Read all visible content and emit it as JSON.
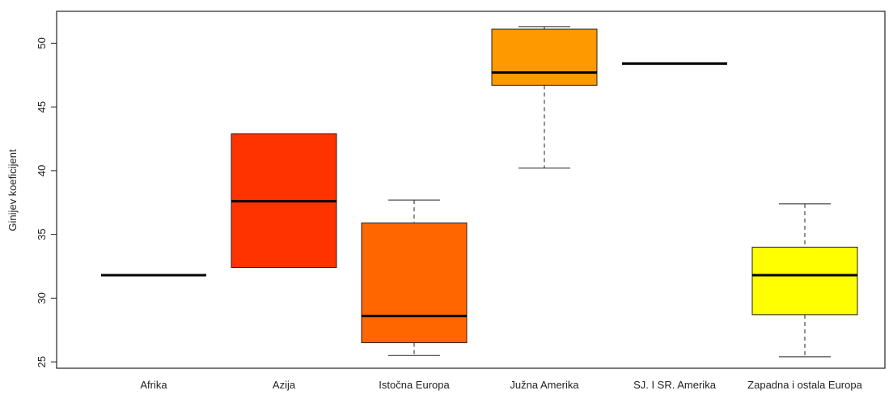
{
  "chart_data": {
    "type": "box",
    "ylabel": "Ginijev koeficijent",
    "xlabel": "",
    "title": "",
    "ylim": [
      24.5,
      52.5
    ],
    "yticks": [
      25,
      30,
      35,
      40,
      45,
      50
    ],
    "grid": false,
    "categories": [
      "Afrika",
      "Azija",
      "Istočna Europa",
      "Južna Amerika",
      "SJ. I SR. Amerika",
      "Zapadna i ostala Europa"
    ],
    "boxes": [
      {
        "category": "Afrika",
        "min": 31.8,
        "q1": 31.8,
        "median": 31.8,
        "q3": 31.8,
        "max": 31.8,
        "color": "#ffffff"
      },
      {
        "category": "Azija",
        "min": 32.4,
        "q1": 32.4,
        "median": 37.6,
        "q3": 42.9,
        "max": 42.9,
        "color": "#ff3300"
      },
      {
        "category": "Istočna Europa",
        "min": 25.5,
        "q1": 26.5,
        "median": 28.6,
        "q3": 35.9,
        "max": 37.7,
        "color": "#ff6600"
      },
      {
        "category": "Južna Amerika",
        "min": 40.2,
        "q1": 46.7,
        "median": 47.7,
        "q3": 51.1,
        "max": 51.3,
        "color": "#ff9900"
      },
      {
        "category": "SJ. I SR. Amerika",
        "min": 48.4,
        "q1": 48.4,
        "median": 48.4,
        "q3": 48.4,
        "max": 48.4,
        "color": "#ffcc00"
      },
      {
        "category": "Zapadna i ostala Europa",
        "min": 25.4,
        "q1": 28.7,
        "median": 31.8,
        "q3": 34.0,
        "max": 37.4,
        "color": "#ffff00"
      }
    ]
  }
}
